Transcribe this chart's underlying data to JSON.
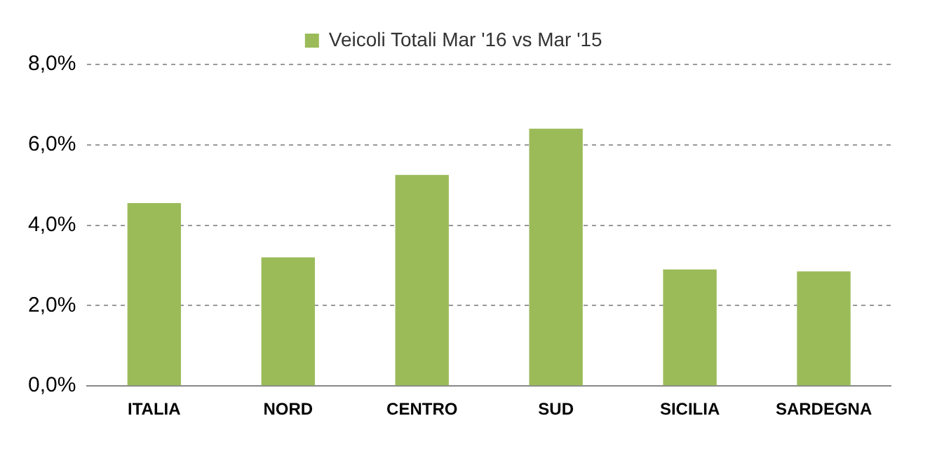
{
  "chart_data": {
    "type": "bar",
    "categories": [
      "ITALIA",
      "NORD",
      "CENTRO",
      "SUD",
      "SICILIA",
      "SARDEGNA"
    ],
    "series": [
      {
        "name": "Veicoli Totali Mar '16 vs Mar '15",
        "color": "#9bbb59",
        "values": [
          4.55,
          3.2,
          5.25,
          6.4,
          2.9,
          2.85
        ]
      }
    ],
    "ylim": [
      0,
      8
    ],
    "yticks": [
      {
        "value": 0,
        "label": "0,0%"
      },
      {
        "value": 2,
        "label": "2,0%"
      },
      {
        "value": 4,
        "label": "4,0%"
      },
      {
        "value": 6,
        "label": "6,0%"
      },
      {
        "value": 8,
        "label": "8,0%"
      }
    ],
    "grid": "y",
    "legend": "top"
  }
}
